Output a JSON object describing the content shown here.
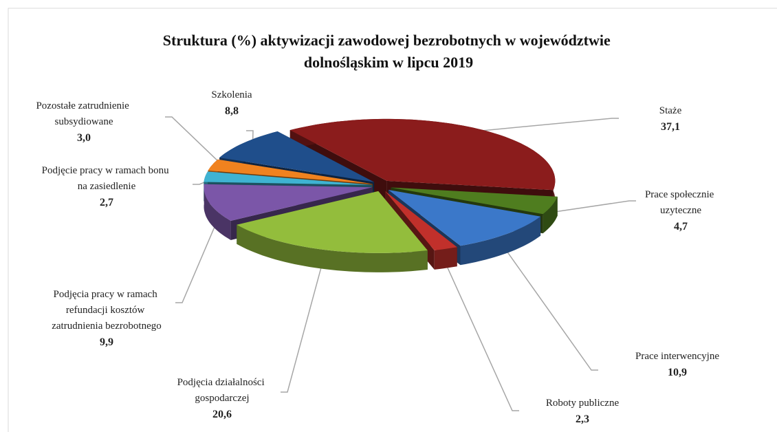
{
  "chart_data": {
    "type": "pie3d",
    "title": "Struktura (%) aktywizacji zawodowej bezrobotnych w województwie dolnośląskim w lipcu 2019",
    "categories": [
      "Staże",
      "Prace społecznie uzyteczne",
      "Prace interwencyjne",
      "Roboty publiczne",
      "Podjęcia działalności gospodarczej",
      "Podjęcia pracy w ramach refundacji kosztów zatrudnienia bezrobotnego",
      "Podjęcie pracy w ramach bonu na zasiedlenie",
      "Pozostałe zatrudnienie subsydiowane",
      "Szkolenia"
    ],
    "values": [
      37.1,
      4.7,
      10.9,
      2.3,
      20.6,
      9.9,
      2.7,
      3.0,
      8.8
    ],
    "value_labels": [
      "37,1",
      "4,7",
      "10,9",
      "2,3",
      "20,6",
      "9,9",
      "2,7",
      "3,0",
      "8,8"
    ],
    "colors": [
      "#8b1c1c",
      "#4f7d1f",
      "#3b78c9",
      "#c1302b",
      "#93bd3c",
      "#7b56a8",
      "#3fb3d2",
      "#f0821f",
      "#1f4e8b"
    ]
  }
}
